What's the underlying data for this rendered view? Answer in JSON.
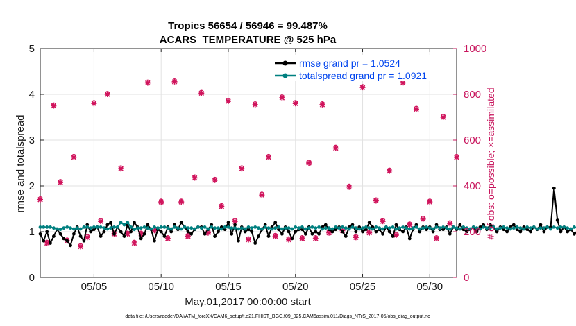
{
  "chart_data": {
    "type": "line",
    "title": "Tropics 56654 / 56946 = 99.487%",
    "subtitle": "ACARS_TEMPERATURE @ 525 hPa",
    "xlabel": "May.01,2017 00:00:00 start",
    "ylabel": "rmse and totalspread",
    "ylabel_right": "# of obs: o=possible; ×=assimilated",
    "footnote": "data file: /Users/raeder/DAI/ATM_forcXX/CAM6_setup/f.e21.FHIST_BGC.f09_025.CAM6assim.011/Diags_NTrS_2017-05/obs_diag_output.nc",
    "xlim": [
      1.0,
      32.0
    ],
    "ylim": [
      0,
      5
    ],
    "ylim_right": [
      0,
      1000
    ],
    "xticks": [
      5,
      10,
      15,
      20,
      25,
      30
    ],
    "xtick_labels": [
      "05/05",
      "05/10",
      "05/15",
      "05/20",
      "05/25",
      "05/30"
    ],
    "yticks": [
      0,
      1,
      2,
      3,
      4,
      5
    ],
    "ytick_labels": [
      "0",
      "1",
      "2",
      "3",
      "4",
      "5"
    ],
    "yticks_right": [
      0,
      200,
      400,
      600,
      800,
      1000
    ],
    "ytick_labels_right": [
      "0",
      "200",
      "400",
      "600",
      "800",
      "1000"
    ],
    "grid": true,
    "legend_position": "top-right",
    "colors": {
      "rmse": "#000000",
      "totalspread": "#008080",
      "obs": "#d0145c",
      "legend_text": "#0044ee",
      "right_axis": "#c8145c",
      "grid": "#e2e2e2"
    },
    "series": [
      {
        "name": "rmse grand pr = 1.0524",
        "axis": "left",
        "start": 1.0,
        "step": 0.25,
        "values": [
          0.95,
          0.8,
          1.0,
          0.75,
          0.9,
          1.05,
          0.95,
          0.85,
          0.8,
          0.7,
          0.95,
          1.1,
          0.9,
          0.8,
          1.15,
          1.0,
          1.05,
          1.1,
          0.9,
          1.0,
          1.15,
          1.2,
          0.95,
          1.1,
          1.0,
          0.9,
          1.15,
          1.0,
          1.2,
          1.1,
          0.85,
          0.95,
          1.15,
          1.05,
          0.8,
          1.05,
          1.0,
          0.9,
          1.1,
          1.0,
          1.15,
          1.05,
          1.2,
          1.1,
          1.0,
          0.95,
          1.05,
          1.1,
          1.1,
          0.95,
          1.05,
          1.15,
          0.9,
          1.0,
          1.1,
          1.05,
          1.2,
          0.95,
          1.15,
          0.8,
          1.1,
          1.0,
          1.05,
          1.0,
          0.75,
          0.9,
          1.05,
          1.15,
          0.9,
          1.1,
          1.2,
          1.05,
          0.95,
          1.1,
          1.0,
          0.85,
          1.0,
          1.05,
          1.05,
          0.95,
          1.1,
          0.95,
          1.0,
          0.95,
          1.1,
          1.15,
          1.05,
          1.0,
          1.05,
          1.1,
          1.0,
          0.9,
          1.1,
          1.15,
          1.0,
          1.1,
          1.0,
          1.05,
          1.2,
          1.1,
          1.0,
          1.05,
          0.95,
          1.1,
          1.0,
          0.9,
          1.15,
          1.05,
          1.0,
          1.1,
          0.85,
          1.05,
          1.15,
          1.0,
          1.1,
          1.05,
          1.1,
          1.0,
          1.15,
          1.05,
          1.05,
          1.1,
          0.95,
          1.1,
          1.05,
          1.15,
          1.05,
          1.0,
          1.05,
          1.1,
          1.0,
          1.1,
          1.15,
          1.05,
          1.15,
          1.1,
          1.0,
          1.1,
          1.05,
          1.0,
          1.1,
          1.15,
          1.05,
          1.0,
          1.1,
          1.05,
          1.0,
          1.1,
          1.05,
          1.15,
          1.0,
          1.1,
          1.1,
          1.95,
          1.25,
          1.0,
          1.1,
          1.0,
          1.05,
          0.95,
          1.0,
          1.0,
          1.05,
          1.1,
          0.9,
          1.15,
          1.05,
          1.0,
          1.0,
          1.05,
          1.0,
          0.85,
          0.8,
          1.1,
          1.0,
          1.1,
          1.15,
          1.05,
          1.25,
          1.5,
          1.45,
          1.05,
          1.1,
          1.0,
          1.0,
          1.05,
          1.0,
          0.95,
          1.2,
          1.05,
          1.1,
          1.2,
          1.15,
          1.05,
          1.1,
          1.05,
          1.05,
          0.9,
          1.0,
          0.8,
          1.05,
          1.0,
          1.0,
          1.1,
          1.15,
          0.75,
          1.0,
          1.4,
          1.1,
          1.05,
          1.15,
          1.0,
          1.0,
          0.8,
          1.05,
          1.05,
          1.05,
          0.95,
          1.05,
          0.95,
          0.85,
          0.95,
          1.0,
          1.05,
          0.75
        ]
      },
      {
        "name": "totalspread grand pr = 1.0921",
        "axis": "left",
        "start": 1.0,
        "step": 0.25,
        "values": [
          1.1,
          1.1,
          1.1,
          1.1,
          1.08,
          1.06,
          1.05,
          1.08,
          1.1,
          1.08,
          1.06,
          1.08,
          1.06,
          1.1,
          1.1,
          1.08,
          1.1,
          1.1,
          1.1,
          1.08,
          1.06,
          1.08,
          1.1,
          1.1,
          1.2,
          1.15,
          1.2,
          1.1,
          1.05,
          1.08,
          1.08,
          1.1,
          1.08,
          1.06,
          1.1,
          1.08,
          1.1,
          1.1,
          1.08,
          1.06,
          1.1,
          1.08,
          1.06,
          1.1,
          1.08,
          1.08,
          1.06,
          1.1,
          1.08,
          1.1,
          1.06,
          1.1,
          1.08,
          1.08,
          1.06,
          1.1,
          1.1,
          1.08,
          1.08,
          1.06,
          1.08,
          1.06,
          1.1,
          1.08,
          1.1,
          1.08,
          1.06,
          1.1,
          1.08,
          1.06,
          1.08,
          1.1,
          1.06,
          1.08,
          1.08,
          1.06,
          1.1,
          1.08,
          1.1,
          1.06,
          1.08,
          1.1,
          1.08,
          1.1,
          1.06,
          1.08,
          1.08,
          1.06,
          1.1,
          1.08,
          1.1,
          1.08,
          1.06,
          1.1,
          1.08,
          1.06,
          1.08,
          1.1,
          1.08,
          1.06,
          1.1,
          1.08,
          1.06,
          1.1,
          1.08,
          1.1,
          1.06,
          1.08,
          1.1,
          1.08,
          1.06,
          1.08,
          1.1,
          1.06,
          1.08,
          1.1,
          1.08,
          1.06,
          1.1,
          1.08,
          1.1,
          1.08,
          1.06,
          1.1,
          1.08,
          1.06,
          1.1,
          1.08,
          1.06,
          1.1,
          1.08,
          1.06,
          1.1,
          1.08,
          1.08,
          1.1,
          1.06,
          1.08,
          1.1,
          1.08,
          1.06,
          1.08,
          1.1,
          1.08,
          1.06,
          1.1,
          1.08,
          1.1,
          1.06,
          1.08,
          1.08,
          1.1,
          1.06,
          1.1,
          1.08,
          1.1,
          1.1,
          1.08,
          1.06,
          1.1,
          1.08,
          1.06,
          1.08,
          1.1,
          1.08,
          1.06,
          1.1,
          1.08,
          1.06,
          1.1,
          1.08,
          1.1,
          1.06,
          1.08,
          1.1,
          1.08,
          1.06,
          1.08,
          1.1,
          1.06,
          1.08,
          1.1,
          1.08,
          1.06,
          1.1,
          1.08,
          1.1,
          1.08,
          1.06,
          1.1,
          1.08,
          1.06,
          1.1,
          1.08,
          1.08,
          1.1,
          1.06,
          1.08,
          1.1,
          1.08,
          1.06,
          1.1,
          1.08,
          1.06,
          1.1,
          1.08,
          1.1,
          1.06,
          1.08,
          1.1,
          1.08,
          1.06,
          1.08,
          1.1,
          1.08,
          1.06,
          1.1,
          1.08,
          1.06,
          1.1,
          1.08,
          1.1,
          1.06,
          1.08
        ]
      },
      {
        "name": "obs possible (o)",
        "axis": "right",
        "marker": "o",
        "x": [
          1.0,
          1.5,
          2.0,
          2.5,
          3.0,
          3.5,
          4.0,
          4.5,
          5.0,
          5.5,
          6.0,
          6.5,
          7.0,
          7.5,
          8.0,
          8.5,
          9.0,
          9.5,
          10.0,
          10.5,
          11.0,
          11.5,
          12.0,
          12.5,
          13.0,
          13.5,
          14.0,
          14.5,
          15.0,
          15.5,
          16.0,
          16.5,
          17.0,
          17.5,
          18.0,
          18.5,
          19.0,
          19.5,
          20.0,
          20.5,
          21.0,
          21.5,
          22.0,
          22.5,
          23.0,
          23.5,
          24.0,
          24.5,
          25.0,
          25.5,
          26.0,
          26.5,
          27.0,
          27.5,
          28.0,
          28.5,
          29.0,
          29.5,
          30.0,
          30.5,
          31.0,
          31.5,
          32.0
        ],
        "values": [
          345,
          155,
          755,
          420,
          165,
          530,
          140,
          180,
          765,
          250,
          805,
          195,
          480,
          195,
          155,
          195,
          855,
          210,
          335,
          175,
          860,
          335,
          185,
          440,
          810,
          200,
          430,
          315,
          775,
          250,
          480,
          170,
          760,
          365,
          530,
          185,
          790,
          170,
          765,
          175,
          505,
          175,
          760,
          200,
          570,
          210,
          400,
          180,
          835,
          200,
          340,
          250,
          470,
          190,
          855,
          235,
          740,
          260,
          335,
          175,
          705,
          240,
          530
        ]
      },
      {
        "name": "obs assimilated (x)",
        "axis": "right",
        "marker": "x",
        "x": [
          1.0,
          1.5,
          2.0,
          2.5,
          3.0,
          3.5,
          4.0,
          4.5,
          5.0,
          5.5,
          6.0,
          6.5,
          7.0,
          7.5,
          8.0,
          8.5,
          9.0,
          9.5,
          10.0,
          10.5,
          11.0,
          11.5,
          12.0,
          12.5,
          13.0,
          13.5,
          14.0,
          14.5,
          15.0,
          15.5,
          16.0,
          16.5,
          17.0,
          17.5,
          18.0,
          18.5,
          19.0,
          19.5,
          20.0,
          20.5,
          21.0,
          21.5,
          22.0,
          22.5,
          23.0,
          23.5,
          24.0,
          24.5,
          25.0,
          25.5,
          26.0,
          26.5,
          27.0,
          27.5,
          28.0,
          28.5,
          29.0,
          29.5,
          30.0,
          30.5,
          31.0,
          31.5,
          32.0
        ],
        "values": [
          340,
          150,
          750,
          415,
          160,
          525,
          135,
          175,
          760,
          245,
          800,
          190,
          475,
          190,
          150,
          190,
          850,
          205,
          330,
          170,
          855,
          330,
          180,
          435,
          805,
          195,
          425,
          310,
          770,
          245,
          475,
          165,
          755,
          360,
          525,
          180,
          785,
          165,
          760,
          170,
          500,
          170,
          755,
          195,
          565,
          205,
          395,
          175,
          830,
          195,
          335,
          245,
          465,
          185,
          850,
          230,
          735,
          255,
          330,
          170,
          700,
          235,
          525
        ]
      }
    ],
    "legend_entries": [
      "rmse grand pr = 1.0524",
      "totalspread grand pr = 1.0921"
    ]
  }
}
